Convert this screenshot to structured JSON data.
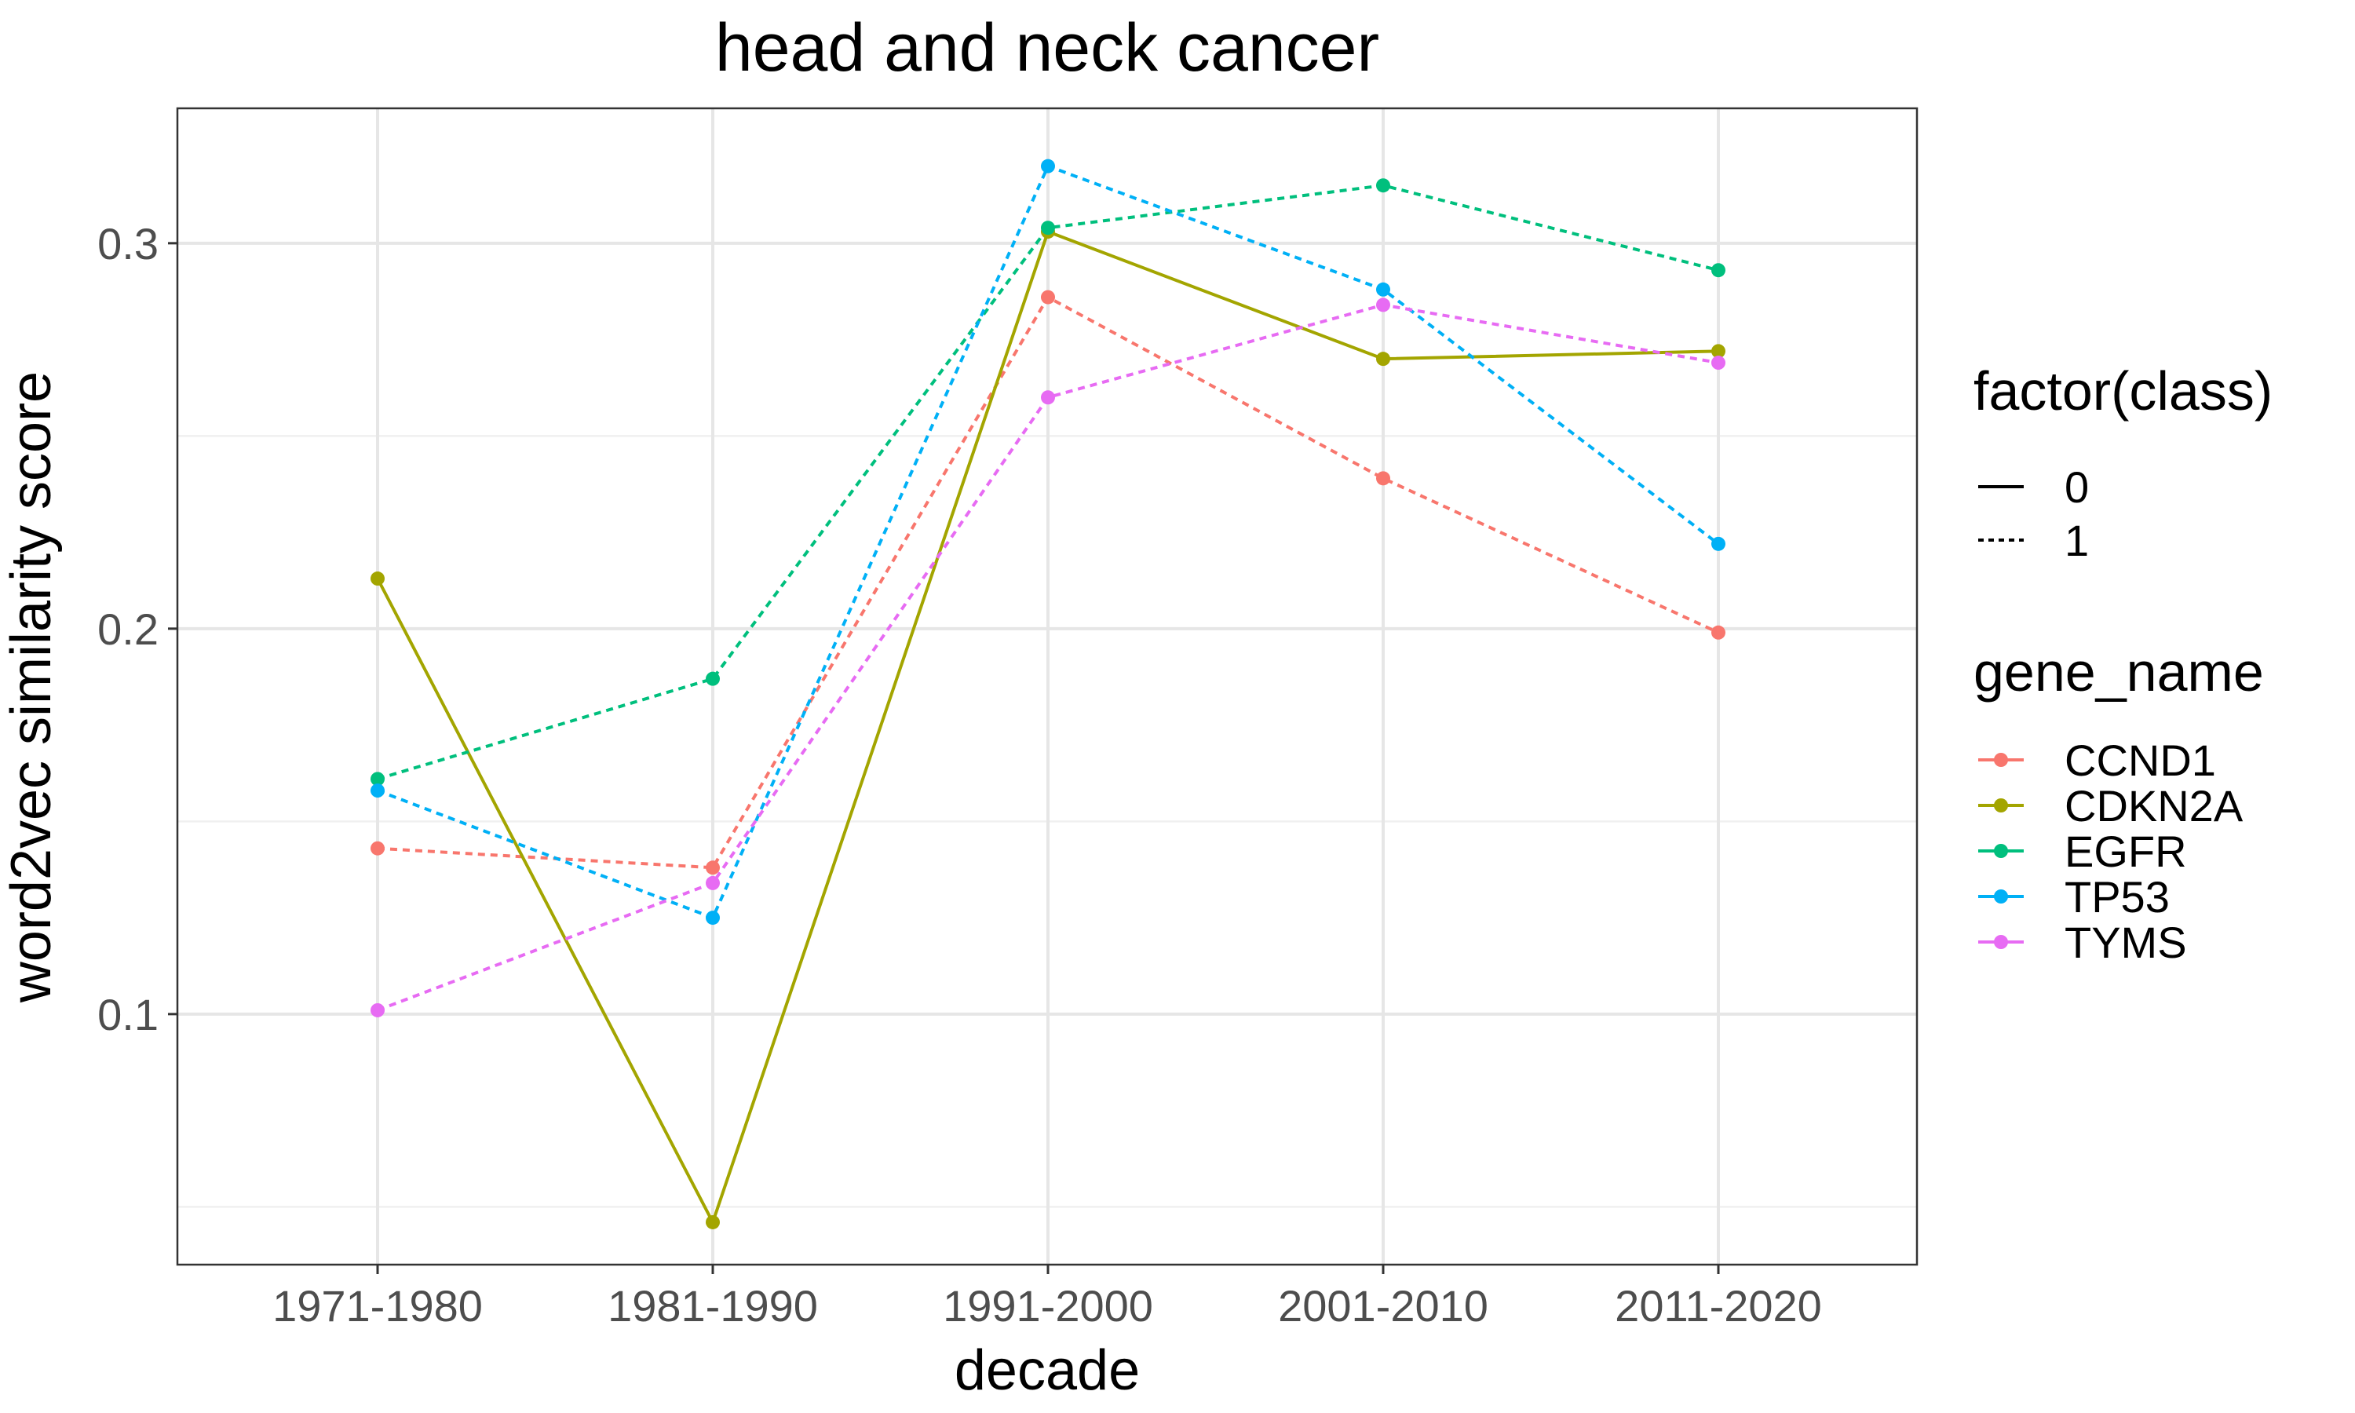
{
  "chart_data": {
    "type": "line",
    "title": "head and neck cancer",
    "xlabel": "decade",
    "ylabel": "word2vec similarity score",
    "categories": [
      "1971-1980",
      "1981-1990",
      "1991-2000",
      "2001-2010",
      "2011-2020"
    ],
    "ylim": [
      0.035,
      0.335
    ],
    "yticks": [
      0.1,
      0.2,
      0.3
    ],
    "ytick_labels": [
      "0.1",
      "0.2",
      "0.3"
    ],
    "yminor": [
      0.05,
      0.15,
      0.25
    ],
    "grid": true,
    "legend_placement": "right",
    "linetype_legend": {
      "title": "factor(class)",
      "entries": [
        {
          "label": "0",
          "dash": "solid"
        },
        {
          "label": "1",
          "dash": "dotted"
        }
      ]
    },
    "color_legend": {
      "title": "gene_name"
    },
    "series": [
      {
        "name": "CCND1",
        "color": "#F8766D",
        "class": "1",
        "values": [
          0.143,
          0.138,
          0.286,
          0.239,
          0.199
        ]
      },
      {
        "name": "CDKN2A",
        "color": "#A3A500",
        "class": "0",
        "values": [
          0.213,
          0.046,
          0.303,
          0.27,
          0.272
        ]
      },
      {
        "name": "EGFR",
        "color": "#00BF7D",
        "class": "1",
        "values": [
          0.161,
          0.187,
          0.304,
          0.315,
          0.293
        ]
      },
      {
        "name": "TP53",
        "color": "#00B0F6",
        "class": "1",
        "values": [
          0.158,
          0.125,
          0.32,
          0.288,
          0.222
        ]
      },
      {
        "name": "TYMS",
        "color": "#E76BF3",
        "class": "1",
        "values": [
          0.101,
          0.134,
          0.26,
          0.284,
          0.269
        ]
      }
    ]
  }
}
